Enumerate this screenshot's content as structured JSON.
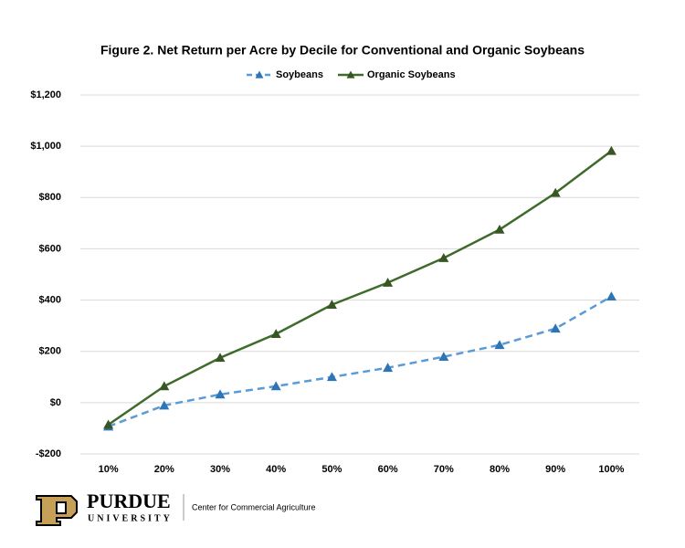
{
  "chart_data": {
    "type": "line",
    "title": "Figure 2. Net Return per Acre by Decile for Conventional and Organic Soybeans",
    "categories": [
      "10%",
      "20%",
      "30%",
      "40%",
      "50%",
      "60%",
      "70%",
      "80%",
      "90%",
      "100%"
    ],
    "series": [
      {
        "name": "Soybeans",
        "color": "#5b9bd5",
        "marker_color": "#2e75b6",
        "dashed": true,
        "values": [
          -93,
          -11,
          32,
          64,
          100,
          136,
          179,
          225,
          289,
          414
        ]
      },
      {
        "name": "Organic Soybeans",
        "color": "#3e6b2b",
        "marker_color": "#375623",
        "dashed": false,
        "values": [
          -86,
          64,
          175,
          268,
          382,
          468,
          564,
          675,
          818,
          982
        ]
      }
    ],
    "ylim": [
      -200,
      1200
    ],
    "yticks": [
      {
        "value": -200,
        "label": "-$200"
      },
      {
        "value": 0,
        "label": "$0"
      },
      {
        "value": 200,
        "label": "$200"
      },
      {
        "value": 400,
        "label": "$400"
      },
      {
        "value": 600,
        "label": "$600"
      },
      {
        "value": 800,
        "label": "$800"
      },
      {
        "value": 1000,
        "label": "$1,000"
      },
      {
        "value": 1200,
        "label": "$1,200"
      }
    ],
    "grid": true
  },
  "footer": {
    "logo_name": "PURDUE",
    "logo_sub": "UNIVERSITY",
    "center": "Center for Commercial Agriculture"
  }
}
